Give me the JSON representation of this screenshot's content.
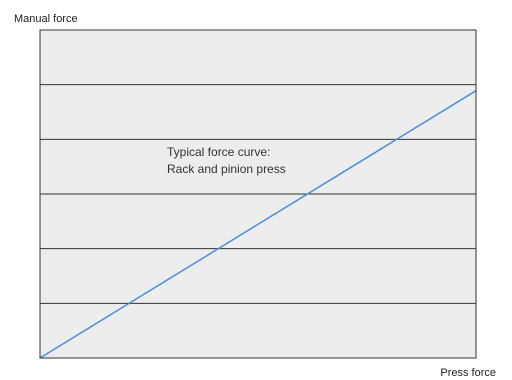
{
  "chart_data": {
    "type": "line",
    "title": "",
    "xlabel": "Press force",
    "ylabel": "Manual force",
    "xlim": [
      0,
      1
    ],
    "ylim": [
      0,
      1
    ],
    "grid": {
      "horizontal": true,
      "vertical": false,
      "lines": 5
    },
    "annotation": {
      "line1": "Typical force curve:",
      "line2": "Rack and pinion press"
    },
    "series": [
      {
        "x": [
          0,
          1
        ],
        "y": [
          0,
          0.815
        ]
      }
    ],
    "colors": {
      "plot_background": "#ededed",
      "grid": "#333333",
      "line": "#4a90d9",
      "frame": "#333333"
    }
  }
}
